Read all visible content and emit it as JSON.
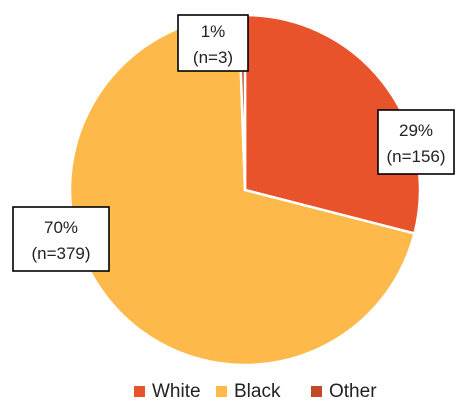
{
  "chart_data": {
    "type": "pie",
    "slices": [
      {
        "name": "White",
        "percent_label": "29%",
        "n_label": "(n=156)",
        "value": 156,
        "color": "#E8532B"
      },
      {
        "name": "Black",
        "percent_label": "70%",
        "n_label": "(n=379)",
        "value": 379,
        "color": "#FDBA4A"
      },
      {
        "name": "Other",
        "percent_label": "1%",
        "n_label": "(n=3)",
        "value": 3,
        "color": "#C04A27"
      }
    ],
    "legend": {
      "position": "bottom",
      "items": [
        {
          "label": "White",
          "color": "#E8532B"
        },
        {
          "label": "Black",
          "color": "#FDBA4A"
        },
        {
          "label": "Other",
          "color": "#C04A27"
        }
      ]
    }
  }
}
